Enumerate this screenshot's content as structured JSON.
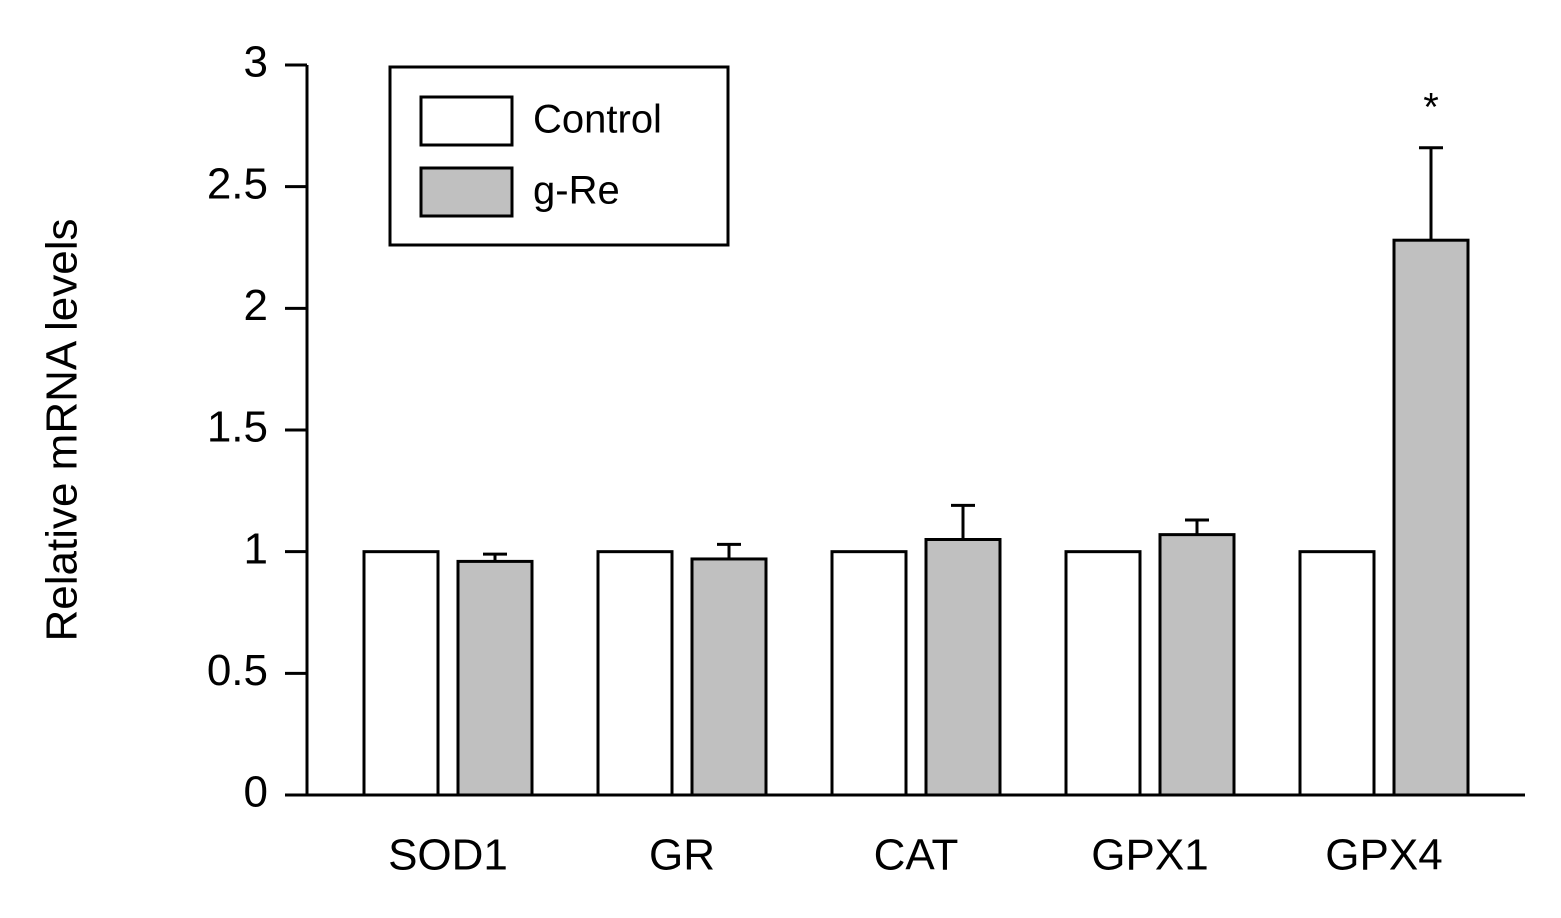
{
  "chart_data": {
    "type": "bar",
    "y_label": "Relative mRNA levels",
    "categories": [
      "SOD1",
      "GR",
      "CAT",
      "GPX1",
      "GPX4"
    ],
    "series": [
      {
        "name": "Control",
        "color": "#ffffff",
        "values": [
          1,
          1,
          1,
          1,
          1
        ]
      },
      {
        "name": "g-Re",
        "color": "#c0c0c0",
        "values": [
          0.96,
          0.97,
          1.05,
          1.07,
          2.28
        ],
        "errors": [
          0.03,
          0.06,
          0.14,
          0.06,
          0.38
        ]
      }
    ],
    "annotations": [
      {
        "text": "*",
        "x": "GPX4"
      }
    ],
    "ylim": [
      0,
      3
    ],
    "yticks": [
      0,
      0.5,
      1,
      1.5,
      2,
      2.5,
      3
    ],
    "grid": false,
    "legend": "top-left"
  }
}
